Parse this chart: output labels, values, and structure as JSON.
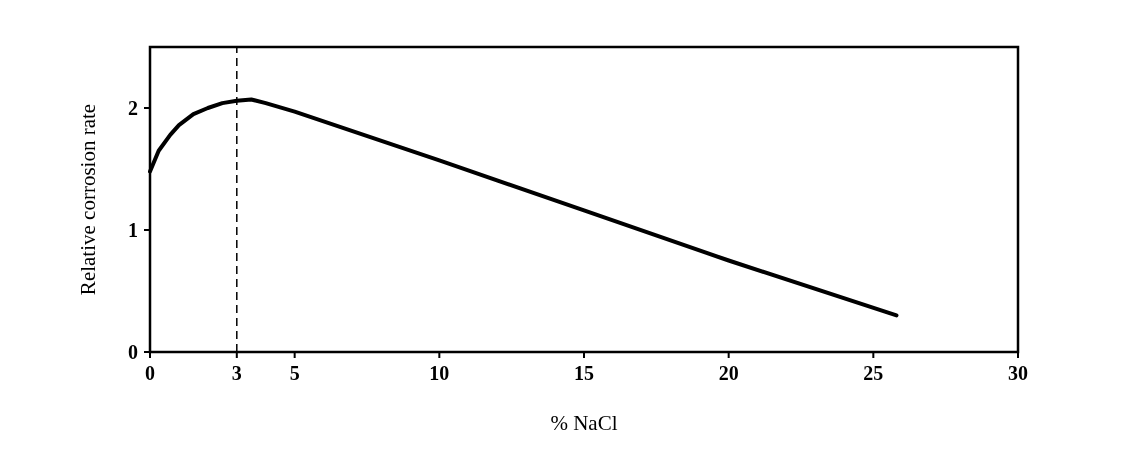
{
  "chart_data": {
    "type": "line",
    "xlabel": "% NaCl",
    "ylabel": "Relative corrosion rate",
    "x": [
      0,
      0.3,
      0.7,
      1,
      1.5,
      2,
      2.5,
      3,
      3.5,
      4,
      5,
      10,
      15,
      20,
      25.8
    ],
    "series": [
      {
        "color": "#000000",
        "values": [
          1.48,
          1.65,
          1.78,
          1.86,
          1.95,
          2.0,
          2.04,
          2.06,
          2.07,
          2.04,
          1.97,
          1.57,
          1.16,
          0.75,
          0.3
        ]
      }
    ],
    "xlim": [
      0,
      30
    ],
    "xticks": [
      0,
      3,
      5,
      10,
      15,
      20,
      25,
      30
    ],
    "ylim": [
      0,
      2.5
    ],
    "yticks": [
      0,
      1,
      2
    ],
    "ref_lines": [
      {
        "axis": "x",
        "value": 3,
        "line_style": "dashed",
        "color": "#000000"
      }
    ],
    "marker": "none",
    "line_style": "solid"
  }
}
